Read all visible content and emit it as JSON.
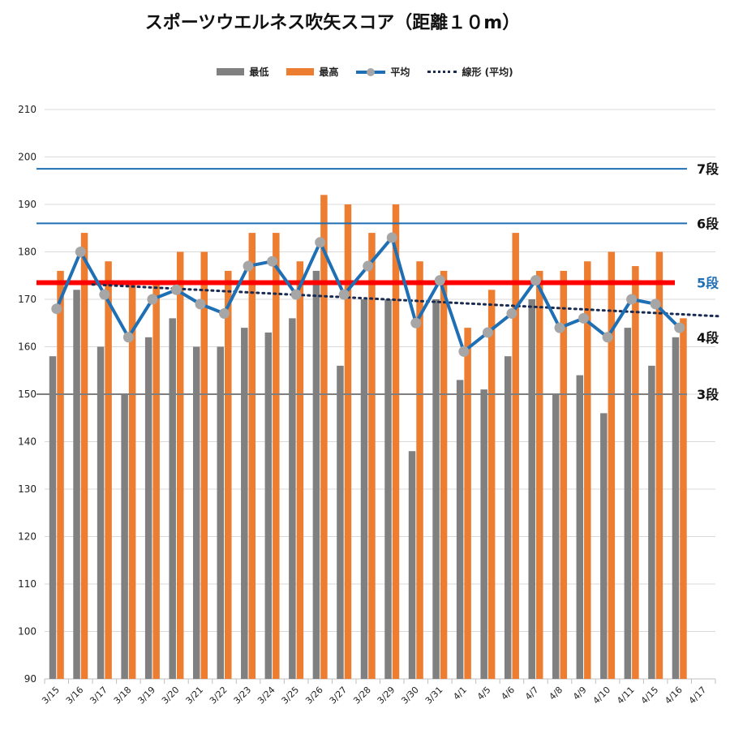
{
  "chart_data": {
    "type": "bar",
    "title": "スポーツウエルネス吹矢スコア（距離１０m）",
    "categories": [
      "3/15",
      "3/16",
      "3/17",
      "3/18",
      "3/19",
      "3/20",
      "3/21",
      "3/22",
      "3/23",
      "3/24",
      "3/25",
      "3/26",
      "3/27",
      "3/28",
      "3/29",
      "3/30",
      "3/31",
      "4/1",
      "4/5",
      "4/6",
      "4/7",
      "4/8",
      "4/9",
      "4/10",
      "4/11",
      "4/15",
      "4/16",
      "4/17"
    ],
    "series": [
      {
        "name": "最低",
        "type": "bar",
        "color": "#808080",
        "values": [
          158,
          172,
          160,
          150,
          162,
          166,
          160,
          160,
          164,
          163,
          166,
          176,
          156,
          170,
          170,
          138,
          170,
          153,
          151,
          158,
          170,
          150,
          154,
          146,
          164,
          156,
          162,
          null
        ]
      },
      {
        "name": "最高",
        "type": "bar",
        "color": "#ed7d31",
        "values": [
          176,
          184,
          178,
          173,
          173,
          180,
          180,
          176,
          184,
          184,
          178,
          192,
          190,
          184,
          190,
          178,
          176,
          164,
          172,
          184,
          176,
          176,
          178,
          180,
          177,
          180,
          166,
          null
        ]
      },
      {
        "name": "平均",
        "type": "line",
        "color": "#1f6fb5",
        "values": [
          168,
          180,
          171,
          162,
          170,
          172,
          169,
          167,
          177,
          178,
          171,
          182,
          171,
          177,
          183,
          165,
          174,
          159,
          163,
          167,
          174,
          164,
          166,
          162,
          170,
          169,
          164,
          null
        ]
      },
      {
        "name": "線形 (平均)",
        "type": "trendline",
        "color": "#1a2b52"
      }
    ],
    "ylim": [
      90,
      210
    ],
    "yticks": [
      90,
      100,
      110,
      120,
      130,
      140,
      150,
      160,
      170,
      180,
      190,
      200,
      210
    ],
    "reference_lines": [
      {
        "label": "7段",
        "value": 197.5,
        "color": "#1f6fb5",
        "label_color": "#111111"
      },
      {
        "label": "6段",
        "value": 186,
        "color": "#1f6fb5",
        "label_color": "#111111"
      },
      {
        "label": "5段",
        "value": 173.5,
        "color": "#ff0000",
        "label_color": "#1f6fb5"
      },
      {
        "label": "4段",
        "value": 162,
        "color": null,
        "label_color": "#111111"
      },
      {
        "label": "3段",
        "value": 150,
        "color": "#7f7f7f",
        "label_color": "#111111"
      }
    ],
    "xlabel": "",
    "ylabel": "",
    "grid": true,
    "legend_position": "top"
  }
}
